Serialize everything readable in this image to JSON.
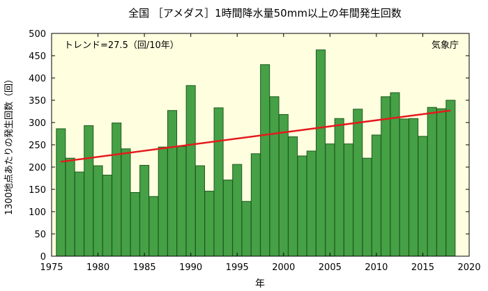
{
  "chart_data": {
    "type": "bar",
    "title": "全国 ［アメダス］1時間降水量50mm以上の年間発生回数",
    "xlabel": "年",
    "ylabel": "1300地点あたりの発生回数（回）",
    "trend_label": "トレンド=27.5（回/10年）",
    "source_label": "気象庁",
    "xlim": [
      1975,
      2020
    ],
    "ylim": [
      0,
      500
    ],
    "x_ticks": [
      1975,
      1980,
      1985,
      1990,
      1995,
      2000,
      2005,
      2010,
      2015,
      2020
    ],
    "y_ticks": [
      0,
      50,
      100,
      150,
      200,
      250,
      300,
      350,
      400,
      450,
      500
    ],
    "x": [
      1976,
      1977,
      1978,
      1979,
      1980,
      1981,
      1982,
      1983,
      1984,
      1985,
      1986,
      1987,
      1988,
      1989,
      1990,
      1991,
      1992,
      1993,
      1994,
      1995,
      1996,
      1997,
      1998,
      1999,
      2000,
      2001,
      2002,
      2003,
      2004,
      2005,
      2006,
      2007,
      2008,
      2009,
      2010,
      2011,
      2012,
      2013,
      2014,
      2015,
      2016,
      2017,
      2018
    ],
    "values": [
      286,
      220,
      189,
      293,
      203,
      182,
      299,
      241,
      143,
      204,
      134,
      245,
      327,
      246,
      383,
      203,
      146,
      333,
      171,
      206,
      123,
      230,
      430,
      358,
      318,
      268,
      225,
      236,
      463,
      252,
      309,
      252,
      330,
      220,
      272,
      358,
      367,
      308,
      309,
      269,
      334,
      331,
      350
    ],
    "trend_line": {
      "x": [
        1976,
        2018
      ],
      "y": [
        212,
        327
      ]
    },
    "grid": false,
    "colors": {
      "bar_fill": "#46a046",
      "bar_stroke": "#1d5a1d",
      "plot_background": "#ffffe0",
      "trend_line": "#e41a1c"
    }
  }
}
